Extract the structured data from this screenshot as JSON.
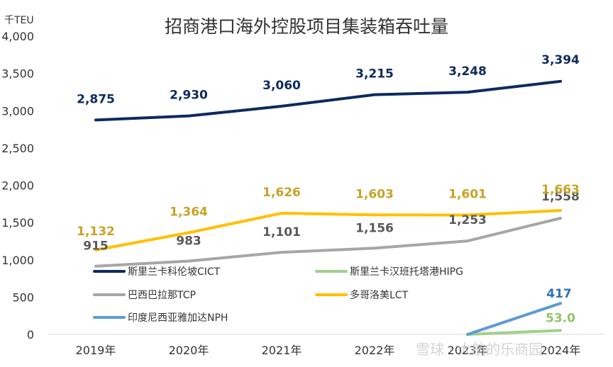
{
  "chart_data": {
    "type": "line",
    "title": "招商港口海外控股项目集装箱吞吐量",
    "unit_label": "千TEU",
    "ylim": [
      0,
      4000
    ],
    "yticks": [
      "0",
      "500",
      "1,000",
      "1,500",
      "2,000",
      "2,500",
      "3,000",
      "3,500",
      "4,000"
    ],
    "ytick_values": [
      0,
      500,
      1000,
      1500,
      2000,
      2500,
      3000,
      3500,
      4000
    ],
    "categories": [
      "2019年",
      "2020年",
      "2021年",
      "2022年",
      "2023年",
      "2024年"
    ],
    "grid": false,
    "series": [
      {
        "name": "斯里兰卡科伦坡CICT",
        "color": "#0d2a5e",
        "values": [
          2875,
          2930,
          3060,
          3215,
          3248,
          3394
        ],
        "labels": [
          "2,875",
          "2,930",
          "3,060",
          "3,215",
          "3,248",
          "3,394"
        ]
      },
      {
        "name": "斯里兰卡汉班托塔港HIPG",
        "color": "#9fd08a",
        "values": [
          null,
          null,
          null,
          null,
          0,
          53
        ],
        "labels": [
          "",
          "",
          "",
          "",
          "",
          "53.0"
        ]
      },
      {
        "name": "巴西巴拉那TCP",
        "color": "#a6a6a6",
        "values": [
          915,
          983,
          1101,
          1156,
          1253,
          1558
        ],
        "labels": [
          "915",
          "983",
          "1,101",
          "1,156",
          "1,253",
          "1,558"
        ]
      },
      {
        "name": "多哥洛美LCT",
        "color": "#ffc000",
        "values": [
          1132,
          1364,
          1626,
          1603,
          1601,
          1663
        ],
        "labels": [
          "1,132",
          "1,364",
          "1,626",
          "1,603",
          "1,601",
          "1,663"
        ]
      },
      {
        "name": "印度尼西亚雅加达NPH",
        "color": "#5b9bd5",
        "values": [
          null,
          null,
          null,
          null,
          0,
          417
        ],
        "labels": [
          "",
          "",
          "",
          "",
          "",
          "417"
        ]
      }
    ],
    "legend": "inside-lower-left"
  },
  "label_colors": {
    "斯里兰卡科伦坡CICT": "#0d2a5e",
    "斯里兰卡汉班托塔港HIPG": "#92c36a",
    "巴西巴拉那TCP": "#595959",
    "多哥洛美LCT": "#c9a227",
    "印度尼西亚雅加达NPH": "#2e75b6"
  },
  "watermark": "雪球 · 大航的乐商园"
}
